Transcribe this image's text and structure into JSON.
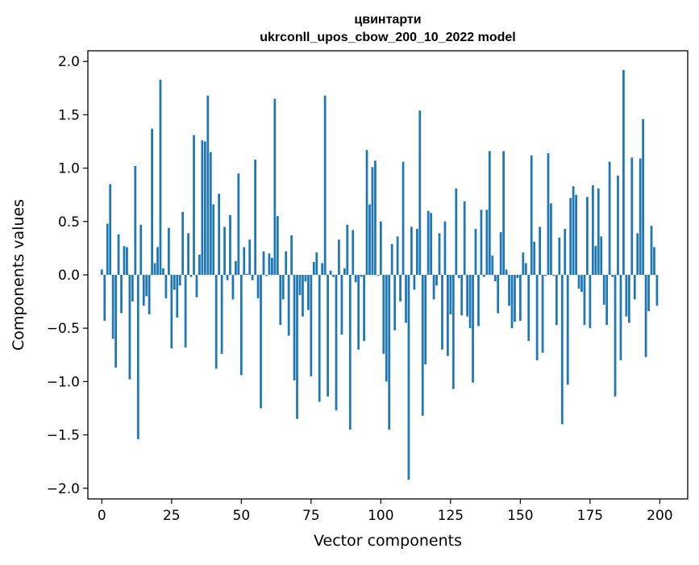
{
  "chart_data": {
    "type": "bar",
    "title": "цвинтарти",
    "subtitle": "ukrconll_upos_cbow_200_10_2022 model",
    "xlabel": "Vector components",
    "ylabel": "Components values",
    "xlim": [
      -5,
      210
    ],
    "ylim": [
      -2.1,
      2.1
    ],
    "xticks": [
      0,
      25,
      50,
      75,
      100,
      125,
      150,
      175,
      200
    ],
    "yticks": [
      2.0,
      1.5,
      1.0,
      0.5,
      0.0,
      -0.5,
      -1.0,
      -1.5,
      -2.0
    ],
    "ytick_labels": [
      "2.0",
      "1.5",
      "1.0",
      "0.5",
      "0.0",
      "−0.5",
      "−1.0",
      "−1.5",
      "−2.0"
    ],
    "bar_color": "#1f77b4",
    "grid": false,
    "values": [
      0.05,
      -0.43,
      0.48,
      0.85,
      -0.6,
      -0.87,
      0.38,
      -0.36,
      0.27,
      0.26,
      -0.98,
      -0.25,
      1.02,
      -1.54,
      0.47,
      -0.29,
      -0.2,
      -0.37,
      1.37,
      0.11,
      0.26,
      1.83,
      0.06,
      -0.22,
      0.44,
      -0.69,
      -0.14,
      -0.4,
      -0.1,
      0.59,
      -0.68,
      0.39,
      -0.02,
      1.31,
      -0.21,
      0.19,
      1.26,
      1.25,
      1.68,
      1.15,
      0.66,
      -0.88,
      0.76,
      -0.74,
      0.45,
      -0.05,
      0.56,
      -0.23,
      0.13,
      0.95,
      -0.94,
      0.26,
      0.01,
      0.33,
      -0.05,
      1.08,
      -0.22,
      -1.25,
      0.22,
      -0.01,
      0.2,
      0.16,
      1.65,
      0.55,
      -0.47,
      -0.23,
      0.22,
      -0.57,
      0.37,
      -0.99,
      -1.35,
      -0.19,
      -0.39,
      -0.06,
      -0.33,
      -0.95,
      0.12,
      0.21,
      -1.19,
      0.11,
      1.68,
      -1.14,
      0.04,
      -0.02,
      -1.27,
      0.33,
      -0.56,
      0.06,
      0.47,
      -1.45,
      0.42,
      -0.07,
      -0.7,
      -0.02,
      -0.62,
      1.17,
      0.66,
      1.01,
      1.07,
      -0.01,
      0.5,
      -0.74,
      -1.0,
      -1.45,
      0.29,
      -0.52,
      0.36,
      -0.25,
      1.06,
      -0.45,
      -1.92,
      0.45,
      -0.14,
      0.43,
      1.54,
      -1.32,
      -0.84,
      0.6,
      0.58,
      -0.23,
      -0.1,
      0.39,
      -0.7,
      0.5,
      -0.76,
      -0.37,
      -1.07,
      0.81,
      -0.03,
      -0.38,
      0.69,
      -0.39,
      -0.5,
      -1.01,
      0.43,
      -0.48,
      0.61,
      -0.02,
      0.61,
      1.16,
      0.18,
      -0.06,
      -0.36,
      0.4,
      1.16,
      0.05,
      -0.29,
      -0.5,
      -0.44,
      -0.03,
      -0.43,
      0.21,
      0.11,
      -0.62,
      1.12,
      0.31,
      -0.8,
      0.45,
      -0.73,
      -0.01,
      1.14,
      0.67,
      -0.01,
      -0.47,
      0.35,
      -1.4,
      0.43,
      -1.03,
      0.72,
      0.83,
      0.75,
      -0.13,
      -0.16,
      -0.47,
      0.73,
      -0.5,
      0.84,
      0.27,
      0.81,
      0.36,
      -0.28,
      -0.47,
      1.06,
      -0.02,
      -1.14,
      0.93,
      -0.8,
      1.92,
      -0.39,
      -0.45,
      1.1,
      -0.23,
      0.39,
      1.09,
      1.46,
      -0.77,
      -0.34,
      0.46,
      0.26,
      -0.29
    ]
  }
}
